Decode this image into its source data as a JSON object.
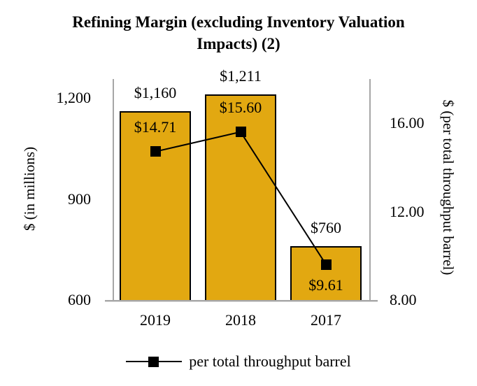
{
  "title": {
    "lines": [
      "Refining Margin (excluding Inventory Valuation",
      "Impacts) (2)"
    ]
  },
  "chart_data": {
    "type": "bar+line combo",
    "categories": [
      "2019",
      "2018",
      "2017"
    ],
    "series": [
      {
        "name": "Refining margin ($ in millions)",
        "type": "bar",
        "axis": "left",
        "values": [
          1160,
          1211,
          760
        ],
        "data_labels": [
          "$1,160",
          "$1,211",
          "$760"
        ],
        "fill_color": "#E2A811",
        "border_color": "#000000"
      },
      {
        "name": "per total throughput barrel",
        "type": "line",
        "axis": "right",
        "values": [
          14.71,
          15.6,
          9.61
        ],
        "data_labels": [
          "$14.71",
          "$15.60",
          "$9.61"
        ],
        "label_side": [
          "above",
          "above",
          "below"
        ],
        "color": "#000000",
        "marker": "filled-square"
      }
    ],
    "left_axis": {
      "title": "$ (in millions)",
      "min": 600,
      "max": 1200,
      "tick_values": [
        1200,
        900,
        600
      ],
      "tick_labels": [
        "1,200",
        "900",
        "600"
      ]
    },
    "right_axis": {
      "title": "$ (per total throughput barrel)",
      "min": 8,
      "max": 16,
      "tick_values": [
        16,
        12,
        8
      ],
      "tick_labels": [
        "16.00",
        "12.00",
        "8.00"
      ]
    },
    "legend": {
      "position": "bottom",
      "items": [
        {
          "label": "per total throughput barrel",
          "marker": "square-on-line"
        }
      ]
    },
    "grid": false,
    "axis_line_color": "#A6A6A6"
  }
}
